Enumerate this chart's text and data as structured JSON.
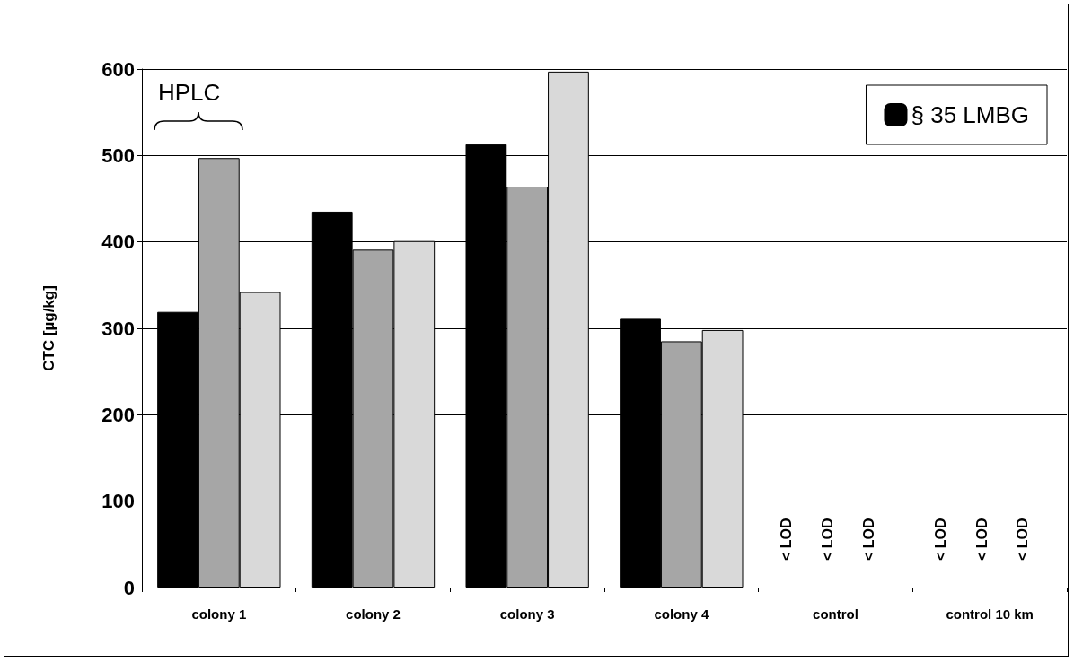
{
  "chart_data": {
    "type": "bar",
    "ylabel": "CTC [µg/kg]",
    "categories": [
      "colony 1",
      "colony 2",
      "colony 3",
      "colony 4",
      "control",
      "control 10 km"
    ],
    "series": [
      {
        "name": "§ 35 LMBG",
        "color": "#000000",
        "values": [
          319,
          435,
          513,
          311,
          null,
          null
        ],
        "value_labels": [
          null,
          null,
          null,
          null,
          "< LOD",
          "< LOD"
        ]
      },
      {
        "color": "#a6a6a6",
        "values": [
          497,
          391,
          464,
          285,
          null,
          null
        ],
        "value_labels": [
          null,
          null,
          null,
          null,
          "< LOD",
          "< LOD"
        ]
      },
      {
        "color": "#d9d9d9",
        "values": [
          342,
          401,
          597,
          298,
          null,
          null
        ],
        "value_labels": [
          null,
          null,
          null,
          null,
          "< LOD",
          "< LOD"
        ]
      }
    ],
    "ylim": [
      0,
      600
    ],
    "yticks": [
      0,
      100,
      200,
      300,
      400,
      500,
      600
    ],
    "grid": "y",
    "legend": "top right",
    "annotations": [
      "HPLC"
    ]
  }
}
